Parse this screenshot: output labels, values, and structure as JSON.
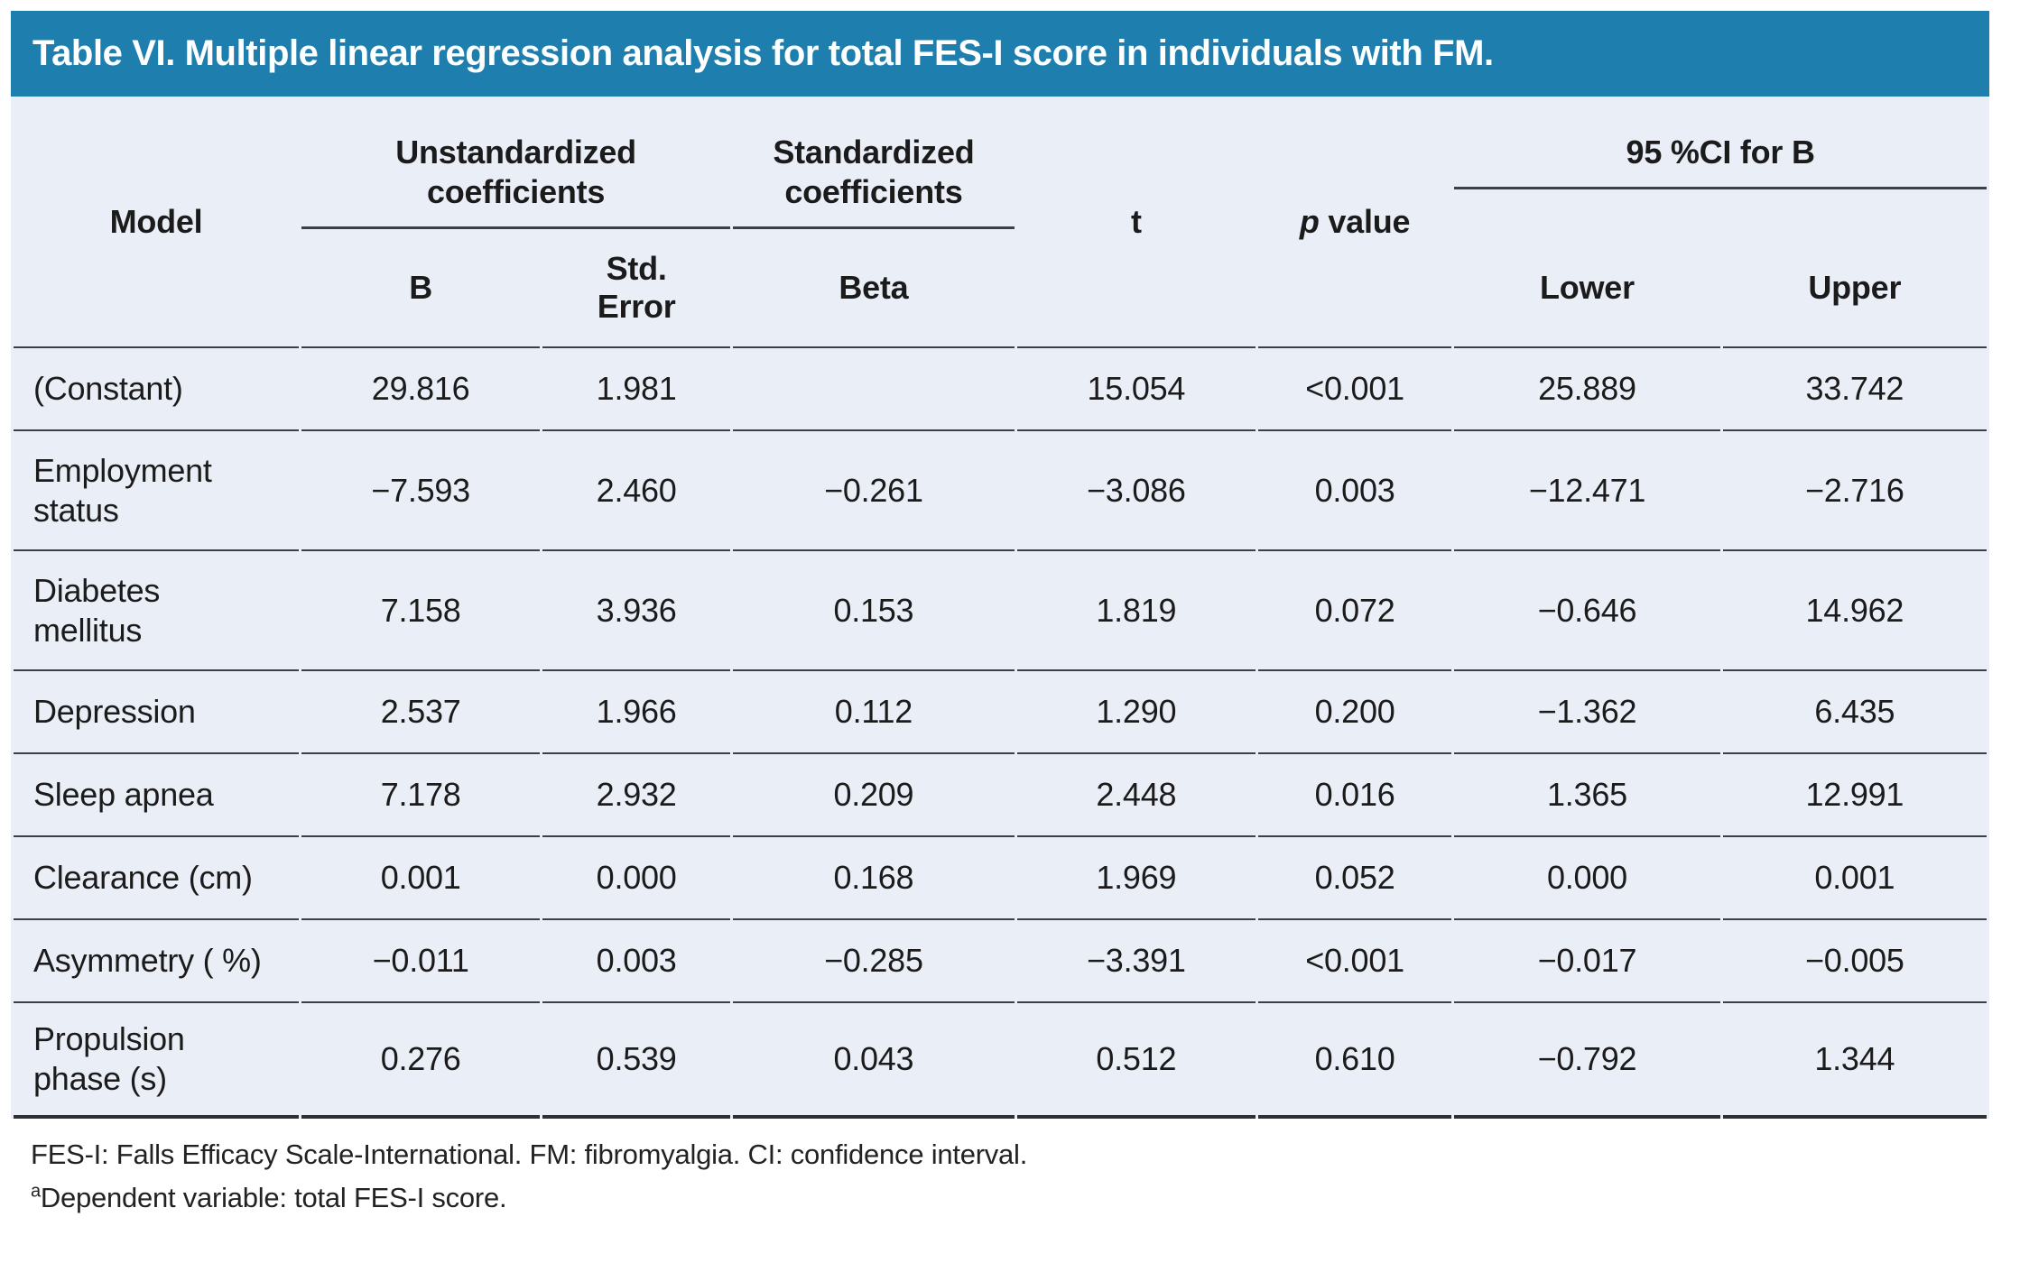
{
  "title": "Table VI. Multiple linear regression analysis for total FES-I score in individuals with FM.",
  "colors": {
    "header_bar": "#1e7fae",
    "table_bg": "#eaeef7",
    "rule": "#3c4044",
    "rule_heavy": "#2e3134"
  },
  "header": {
    "model": "Model",
    "unstd": "Unstandardized\ncoefficients",
    "std": "Standardized\ncoefficients",
    "t": "t",
    "p": {
      "italic": "p",
      "rest": " value"
    },
    "ci": "95 %CI for B",
    "sub": {
      "b": "B",
      "se": "Std.\nError",
      "beta": "Beta",
      "lower": "Lower",
      "upper": "Upper"
    }
  },
  "rows": [
    {
      "model": "(Constant)",
      "b": "29.816",
      "se": "1.981",
      "beta": "",
      "t": "15.054",
      "p": "<0.001",
      "lower": "25.889",
      "upper": "33.742"
    },
    {
      "model": "Employment\nstatus",
      "b": "−7.593",
      "se": "2.460",
      "beta": "−0.261",
      "t": "−3.086",
      "p": "0.003",
      "lower": "−12.471",
      "upper": "−2.716"
    },
    {
      "model": "Diabetes\nmellitus",
      "b": "7.158",
      "se": "3.936",
      "beta": "0.153",
      "t": "1.819",
      "p": "0.072",
      "lower": "−0.646",
      "upper": "14.962"
    },
    {
      "model": "Depression",
      "b": "2.537",
      "se": "1.966",
      "beta": "0.112",
      "t": "1.290",
      "p": "0.200",
      "lower": "−1.362",
      "upper": "6.435"
    },
    {
      "model": "Sleep apnea",
      "b": "7.178",
      "se": "2.932",
      "beta": "0.209",
      "t": "2.448",
      "p": "0.016",
      "lower": "1.365",
      "upper": "12.991"
    },
    {
      "model": "Clearance (cm)",
      "b": "0.001",
      "se": "0.000",
      "beta": "0.168",
      "t": "1.969",
      "p": "0.052",
      "lower": "0.000",
      "upper": "0.001"
    },
    {
      "model": "Asymmetry ( %)",
      "b": "−0.011",
      "se": "0.003",
      "beta": "−0.285",
      "t": "−3.391",
      "p": "<0.001",
      "lower": "−0.017",
      "upper": "−0.005"
    },
    {
      "model": "Propulsion\nphase (s)",
      "b": "0.276",
      "se": "0.539",
      "beta": "0.043",
      "t": "0.512",
      "p": "0.610",
      "lower": "−0.792",
      "upper": "1.344"
    }
  ],
  "footnotes": {
    "line1": "FES-I: Falls Efficacy Scale-International. FM: fibromyalgia. CI: confidence interval.",
    "sup": "a",
    "line2": "Dependent variable: total FES-I score."
  }
}
